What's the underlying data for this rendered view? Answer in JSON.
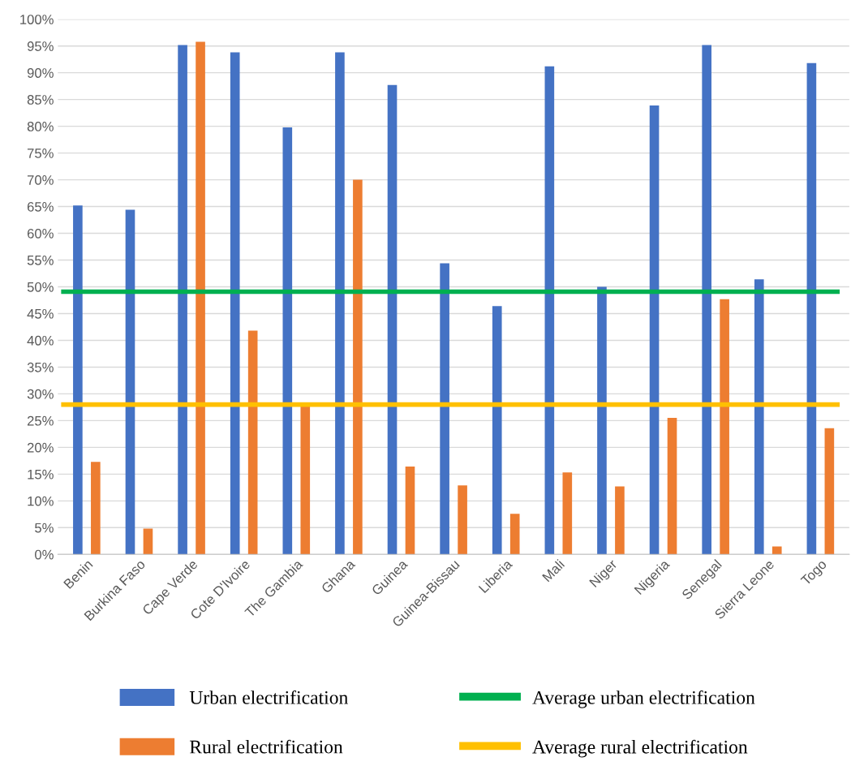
{
  "chart_data": {
    "type": "bar",
    "categories": [
      "Benin",
      "Burkina Faso",
      "Cape Verde",
      "Cote D'Ivoire",
      "The Gambia",
      "Ghana",
      "Guinea",
      "Guinea-Bissau",
      "Liberia",
      "Mali",
      "Niger",
      "Nigeria",
      "Senegal",
      "Sierra Leone",
      "Togo"
    ],
    "series": [
      {
        "name": "Urban electrification",
        "color": "#4472c4",
        "values": [
          65.2,
          64.4,
          95.2,
          93.8,
          79.8,
          93.8,
          87.7,
          54.4,
          46.4,
          91.2,
          50.0,
          83.9,
          95.2,
          51.4,
          91.8
        ]
      },
      {
        "name": "Rural electrification",
        "color": "#ed7d31",
        "values": [
          17.3,
          4.8,
          95.8,
          41.8,
          28.3,
          70.0,
          16.4,
          12.9,
          7.6,
          15.3,
          12.7,
          25.5,
          47.7,
          1.5,
          23.6
        ]
      }
    ],
    "ref_lines": [
      {
        "axis": "y",
        "value": 49.1,
        "label": "Average urban electrification",
        "color": "#00b050"
      },
      {
        "axis": "y",
        "value": 28.0,
        "label": "Average rural electrification",
        "color": "#ffc000"
      }
    ],
    "ylim": [
      0,
      100
    ],
    "yticks": [
      {
        "value": 0,
        "label": "0%"
      },
      {
        "value": 5,
        "label": "5%"
      },
      {
        "value": 10,
        "label": "10%"
      },
      {
        "value": 15,
        "label": "15%"
      },
      {
        "value": 20,
        "label": "20%"
      },
      {
        "value": 25,
        "label": "25%"
      },
      {
        "value": 30,
        "label": "30%"
      },
      {
        "value": 35,
        "label": "35%"
      },
      {
        "value": 40,
        "label": "40%"
      },
      {
        "value": 45,
        "label": "45%"
      },
      {
        "value": 50,
        "label": "50%"
      },
      {
        "value": 55,
        "label": "55%"
      },
      {
        "value": 60,
        "label": "60%"
      },
      {
        "value": 65,
        "label": "65%"
      },
      {
        "value": 70,
        "label": "70%"
      },
      {
        "value": 75,
        "label": "75%"
      },
      {
        "value": 80,
        "label": "80%"
      },
      {
        "value": 85,
        "label": "85%"
      },
      {
        "value": 90,
        "label": "90%"
      },
      {
        "value": 95,
        "label": "95%"
      },
      {
        "value": 100,
        "label": "100%"
      }
    ],
    "grid": "y",
    "legend": "bottom"
  }
}
